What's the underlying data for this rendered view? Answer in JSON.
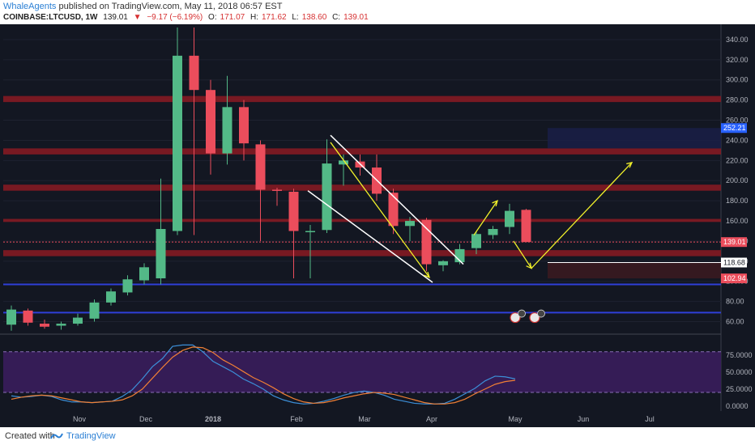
{
  "header": {
    "author": "WhaleAgents",
    "published_text": "published on TradingView.com, May 11, 2018 06:57 EST",
    "symbol": "COINBASE:LTCUSD, 1W",
    "last": "139.01",
    "change": "−9.17 (−6.19%)",
    "open_label": "O:",
    "open": "171.07",
    "high_label": "H:",
    "high": "171.62",
    "low_label": "L:",
    "low": "138.60",
    "close_label": "C:",
    "close": "139.01"
  },
  "footer": {
    "created": "Created with",
    "brand": "TradingView"
  },
  "colors": {
    "background": "#131722",
    "up": "#53b987",
    "down": "#eb4d5c",
    "resistance": "#8b1a22",
    "support": "#2f3fd8",
    "arrow": "#f0f02a",
    "channel": "#ffffff",
    "stoch_k": "#3c8fd8",
    "stoch_d": "#f07f35",
    "stoch_band": "#3a1d5c"
  },
  "chart_data": {
    "type": "candlestick",
    "y_axis_ticks": [
      "340.00",
      "320.00",
      "300.00",
      "280.00",
      "260.00",
      "240.00",
      "220.00",
      "200.00",
      "180.00",
      "160.00",
      "140.00",
      "120.00",
      "100.00",
      "80.00",
      "60.00"
    ],
    "ylim": [
      50,
      352
    ],
    "x_axis_labels": [
      "Nov",
      "Dec",
      "2018",
      "Feb",
      "Mar",
      "Apr",
      "May",
      "Jun",
      "Jul"
    ],
    "price_labels": [
      {
        "text": "252.21",
        "price": 252.21,
        "color": "#2962ff"
      },
      {
        "text": "139.01",
        "price": 139.01,
        "color": "#eb4d5c"
      },
      {
        "text": "118.68",
        "price": 118.68,
        "color": "#ffffff"
      },
      {
        "text": "102.94",
        "price": 102.94,
        "color": "#eb4d5c"
      }
    ],
    "candles": [
      {
        "o": 57,
        "h": 76,
        "l": 51,
        "c": 72
      },
      {
        "o": 71,
        "h": 73,
        "l": 56,
        "c": 59
      },
      {
        "o": 58,
        "h": 62,
        "l": 53,
        "c": 55
      },
      {
        "o": 56,
        "h": 60,
        "l": 52,
        "c": 58
      },
      {
        "o": 58,
        "h": 68,
        "l": 56,
        "c": 64
      },
      {
        "o": 63,
        "h": 82,
        "l": 60,
        "c": 79
      },
      {
        "o": 79,
        "h": 93,
        "l": 76,
        "c": 90
      },
      {
        "o": 89,
        "h": 106,
        "l": 86,
        "c": 102
      },
      {
        "o": 101,
        "h": 118,
        "l": 97,
        "c": 114
      },
      {
        "o": 103,
        "h": 202,
        "l": 97,
        "c": 152
      },
      {
        "o": 150,
        "h": 372,
        "l": 146,
        "c": 324
      },
      {
        "o": 324,
        "h": 362,
        "l": 146,
        "c": 290
      },
      {
        "o": 290,
        "h": 300,
        "l": 206,
        "c": 227
      },
      {
        "o": 227,
        "h": 304,
        "l": 216,
        "c": 273
      },
      {
        "o": 273,
        "h": 280,
        "l": 220,
        "c": 237
      },
      {
        "o": 236,
        "h": 240,
        "l": 140,
        "c": 191
      },
      {
        "o": 191,
        "h": 193,
        "l": 175,
        "c": 190
      },
      {
        "o": 189,
        "h": 192,
        "l": 103,
        "c": 150
      },
      {
        "o": 149,
        "h": 156,
        "l": 103,
        "c": 150
      },
      {
        "o": 151,
        "h": 241,
        "l": 148,
        "c": 217
      },
      {
        "o": 216,
        "h": 226,
        "l": 195,
        "c": 220
      },
      {
        "o": 219,
        "h": 226,
        "l": 205,
        "c": 213
      },
      {
        "o": 213,
        "h": 226,
        "l": 180,
        "c": 187
      },
      {
        "o": 188,
        "h": 192,
        "l": 147,
        "c": 155
      },
      {
        "o": 155,
        "h": 164,
        "l": 140,
        "c": 160
      },
      {
        "o": 161,
        "h": 163,
        "l": 110,
        "c": 117
      },
      {
        "o": 116,
        "h": 121,
        "l": 110,
        "c": 120
      },
      {
        "o": 119,
        "h": 137,
        "l": 117,
        "c": 132
      },
      {
        "o": 133,
        "h": 150,
        "l": 127,
        "c": 147
      },
      {
        "o": 146,
        "h": 155,
        "l": 142,
        "c": 152
      },
      {
        "o": 154,
        "h": 177,
        "l": 147,
        "c": 170
      },
      {
        "o": 171,
        "h": 172,
        "l": 139,
        "c": 139
      }
    ],
    "resistance_zones": [
      [
        278,
        284
      ],
      [
        226,
        232
      ],
      [
        190,
        196
      ],
      [
        159,
        162
      ],
      [
        125,
        131
      ]
    ],
    "support_lines": [
      97,
      69
    ],
    "stochastic": {
      "ticks": [
        "75.0000",
        "50.0000",
        "25.0000",
        "0.0000"
      ],
      "ylim": [
        -5,
        100
      ],
      "bands": [
        80,
        20
      ],
      "k": [
        15,
        13,
        14,
        16,
        14,
        9,
        6,
        6,
        5,
        6,
        7,
        14,
        24,
        40,
        58,
        70,
        88,
        90,
        90,
        80,
        66,
        58,
        50,
        40,
        33,
        25,
        15,
        9,
        5,
        3,
        4,
        7,
        11,
        16,
        20,
        22,
        20,
        16,
        10,
        7,
        4,
        3,
        3,
        4,
        10,
        18,
        26,
        37,
        44,
        43,
        40
      ],
      "d": [
        10,
        13,
        15,
        16,
        15,
        12,
        9,
        6,
        5,
        6,
        7,
        9,
        15,
        25,
        41,
        57,
        72,
        82,
        87,
        86,
        79,
        68,
        60,
        51,
        42,
        35,
        27,
        18,
        11,
        6,
        4,
        5,
        8,
        12,
        15,
        18,
        20,
        19,
        17,
        13,
        9,
        5,
        3,
        3,
        5,
        10,
        18,
        25,
        32,
        36,
        38
      ]
    }
  }
}
